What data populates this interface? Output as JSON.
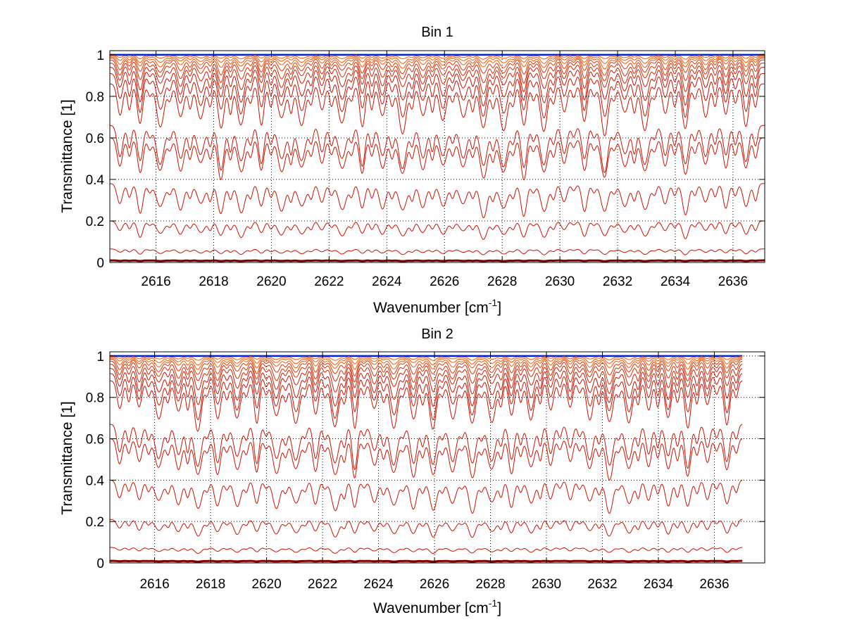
{
  "colors": {
    "background": "#ffffff",
    "axes": "#000000",
    "grid": "#000000",
    "dark_red": "#800000",
    "red": "#cc1100",
    "orange": "#ff5500",
    "blue": "#0022dd"
  },
  "chart_data": [
    {
      "type": "line",
      "title": "Bin 1",
      "xlabel_main": "Wavenumber [cm",
      "xlabel_sup": "-1",
      "xlabel_close": "]",
      "ylabel": "Transmittance [1]",
      "xlim": [
        2614.4,
        2637.1
      ],
      "ylim": [
        0,
        1.02
      ],
      "xticks": [
        2616,
        2618,
        2620,
        2622,
        2624,
        2626,
        2628,
        2630,
        2632,
        2634,
        2636
      ],
      "yticks": [
        0,
        0.2,
        0.4,
        0.6,
        0.8,
        1
      ],
      "ytick_labels": [
        "0",
        "0.2",
        "0.4",
        "0.6",
        "0.8",
        "1"
      ],
      "grid": true,
      "line_spacing_cm1": 0.7,
      "x_end": 2637.1,
      "series_note": "family of transmittance spectra at increasing absorber amounts; continuum levels listed, dips deepen with absorption",
      "series": [
        {
          "name": "s1",
          "continuum": 1.0,
          "depth": 0.0,
          "color": "#0022dd"
        },
        {
          "name": "s2",
          "continuum": 0.998,
          "depth": 0.02,
          "color": "#ff5500"
        },
        {
          "name": "s3",
          "continuum": 0.995,
          "depth": 0.04,
          "color": "#ff5500"
        },
        {
          "name": "s4",
          "continuum": 0.99,
          "depth": 0.06,
          "color": "#ff5500"
        },
        {
          "name": "s5",
          "continuum": 0.985,
          "depth": 0.09,
          "color": "#e83300"
        },
        {
          "name": "s6",
          "continuum": 0.975,
          "depth": 0.12,
          "color": "#e02a00"
        },
        {
          "name": "s7",
          "continuum": 0.96,
          "depth": 0.15,
          "color": "#d02000"
        },
        {
          "name": "s8",
          "continuum": 0.94,
          "depth": 0.19,
          "color": "#cc1100"
        },
        {
          "name": "s9",
          "continuum": 0.91,
          "depth": 0.23,
          "color": "#cc1100"
        },
        {
          "name": "s10",
          "continuum": 0.86,
          "depth": 0.26,
          "color": "#cc1100"
        },
        {
          "name": "s11",
          "continuum": 0.66,
          "depth": 0.24,
          "color": "#cc1100"
        },
        {
          "name": "s12",
          "continuum": 0.6,
          "depth": 0.22,
          "color": "#cc1100"
        },
        {
          "name": "s13",
          "continuum": 0.38,
          "depth": 0.17,
          "color": "#cc1100"
        },
        {
          "name": "s14",
          "continuum": 0.2,
          "depth": 0.09,
          "color": "#cc1100"
        },
        {
          "name": "s15",
          "continuum": 0.065,
          "depth": 0.03,
          "color": "#cc1100"
        },
        {
          "name": "s16",
          "continuum": 0.01,
          "depth": 0.004,
          "color": "#800000"
        }
      ]
    },
    {
      "type": "line",
      "title": "Bin 2",
      "xlabel_main": "Wavenumber [cm",
      "xlabel_sup": "-1",
      "xlabel_close": "]",
      "ylabel": "Transmittance [1]",
      "xlim": [
        2614.4,
        2637.8
      ],
      "ylim": [
        0,
        1.02
      ],
      "xticks": [
        2616,
        2618,
        2620,
        2622,
        2624,
        2626,
        2628,
        2630,
        2632,
        2634,
        2636
      ],
      "yticks": [
        0,
        0.2,
        0.4,
        0.6,
        0.8,
        1
      ],
      "ytick_labels": [
        "0",
        "0.2",
        "0.4",
        "0.6",
        "0.8",
        "1"
      ],
      "grid": true,
      "line_spacing_cm1": 0.7,
      "x_end": 2637.0,
      "series_note": "family of transmittance spectra at increasing absorber amounts; continuum levels listed, dips deepen with absorption",
      "series": [
        {
          "name": "s1",
          "continuum": 1.0,
          "depth": 0.0,
          "color": "#0022dd"
        },
        {
          "name": "s2",
          "continuum": 0.998,
          "depth": 0.02,
          "color": "#ff5500"
        },
        {
          "name": "s3",
          "continuum": 0.995,
          "depth": 0.04,
          "color": "#ff5500"
        },
        {
          "name": "s4",
          "continuum": 0.99,
          "depth": 0.06,
          "color": "#ff5500"
        },
        {
          "name": "s5",
          "continuum": 0.985,
          "depth": 0.09,
          "color": "#e83300"
        },
        {
          "name": "s6",
          "continuum": 0.975,
          "depth": 0.12,
          "color": "#e02a00"
        },
        {
          "name": "s7",
          "continuum": 0.96,
          "depth": 0.15,
          "color": "#d02000"
        },
        {
          "name": "s8",
          "continuum": 0.94,
          "depth": 0.19,
          "color": "#cc1100"
        },
        {
          "name": "s9",
          "continuum": 0.915,
          "depth": 0.23,
          "color": "#cc1100"
        },
        {
          "name": "s10",
          "continuum": 0.88,
          "depth": 0.26,
          "color": "#cc1100"
        },
        {
          "name": "s11",
          "continuum": 0.67,
          "depth": 0.24,
          "color": "#cc1100"
        },
        {
          "name": "s12",
          "continuum": 0.6,
          "depth": 0.22,
          "color": "#cc1100"
        },
        {
          "name": "s13",
          "continuum": 0.4,
          "depth": 0.17,
          "color": "#cc1100"
        },
        {
          "name": "s14",
          "continuum": 0.21,
          "depth": 0.09,
          "color": "#cc1100"
        },
        {
          "name": "s15",
          "continuum": 0.075,
          "depth": 0.03,
          "color": "#cc1100"
        },
        {
          "name": "s16",
          "continuum": 0.01,
          "depth": 0.004,
          "color": "#800000"
        }
      ]
    }
  ]
}
